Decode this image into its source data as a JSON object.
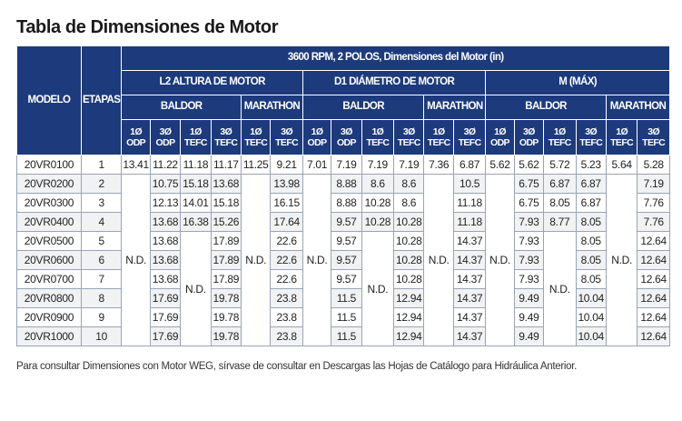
{
  "title": "Tabla de Dimensiones de Motor",
  "colors": {
    "header_bg": "#1d3a7c",
    "header_text": "#ffffff",
    "row_alt_bg": "#f1f2f4",
    "grid": "#9aa3b5"
  },
  "header": {
    "model": "MODELO",
    "stages": "ETAPAS",
    "top": "3600 RPM, 2 POLOS, Dimensiones del Motor (in)",
    "groups": [
      "L2 ALTURA DE MOTOR",
      "D1 DIÁMETRO DE MOTOR",
      "M (MÁX)"
    ],
    "brands": [
      "BALDOR",
      "MARATHON",
      "BALDOR",
      "MARATHON",
      "BALDOR",
      "MARATHON"
    ],
    "columns": [
      [
        "1Ø",
        "ODP"
      ],
      [
        "3Ø",
        "ODP"
      ],
      [
        "1Ø",
        "TEFC"
      ],
      [
        "3Ø",
        "TEFC"
      ],
      [
        "1Ø",
        "TEFC"
      ],
      [
        "3Ø",
        "TEFC"
      ],
      [
        "1Ø",
        "ODP"
      ],
      [
        "3Ø",
        "ODP"
      ],
      [
        "1Ø",
        "TEFC"
      ],
      [
        "3Ø",
        "TEFC"
      ],
      [
        "1Ø",
        "TEFC"
      ],
      [
        "3Ø",
        "TEFC"
      ],
      [
        "1Ø",
        "ODP"
      ],
      [
        "3Ø",
        "ODP"
      ],
      [
        "1Ø",
        "TEFC"
      ],
      [
        "3Ø",
        "TEFC"
      ],
      [
        "1Ø",
        "TEFC"
      ],
      [
        "3Ø",
        "TEFC"
      ]
    ]
  },
  "rows": [
    {
      "model": "20VR0100",
      "stages": "1",
      "values": [
        "13.41",
        "11.22",
        "11.18",
        "11.17",
        "11.25",
        "9.21",
        "7.01",
        "7.19",
        "7.19",
        "7.19",
        "7.36",
        "6.87",
        "5.62",
        "5.62",
        "5.72",
        "5.23",
        "5.64",
        "5.28"
      ]
    },
    {
      "model": "20VR0200",
      "stages": "2",
      "values": [
        "",
        "10.75",
        "15.18",
        "13.68",
        "",
        "13.98",
        "",
        "8.88",
        "8.6",
        "8.6",
        "",
        "10.5",
        "",
        "6.75",
        "6.87",
        "6.87",
        "",
        "7.19"
      ]
    },
    {
      "model": "20VR0300",
      "stages": "3",
      "values": [
        "",
        "12.13",
        "14.01",
        "15.18",
        "",
        "16.15",
        "",
        "8.88",
        "10.28",
        "8.6",
        "",
        "11.18",
        "",
        "6.75",
        "8.05",
        "6.87",
        "",
        "7.76"
      ]
    },
    {
      "model": "20VR0400",
      "stages": "4",
      "values": [
        "",
        "13.68",
        "16.38",
        "15.26",
        "",
        "17.64",
        "",
        "9.57",
        "10.28",
        "10.28",
        "",
        "11.18",
        "",
        "7.93",
        "8.77",
        "8.05",
        "",
        "7.76"
      ]
    },
    {
      "model": "20VR0500",
      "stages": "5",
      "values": [
        "",
        "13.68",
        "",
        "17.89",
        "",
        "22.6",
        "",
        "9.57",
        "",
        "10.28",
        "",
        "14.37",
        "",
        "7.93",
        "",
        "8.05",
        "",
        "12.64"
      ]
    },
    {
      "model": "20VR0600",
      "stages": "6",
      "values": [
        "",
        "13.68",
        "",
        "17.89",
        "",
        "22.6",
        "",
        "9.57",
        "",
        "10.28",
        "",
        "14.37",
        "",
        "7.93",
        "",
        "8.05",
        "",
        "12.64"
      ]
    },
    {
      "model": "20VR0700",
      "stages": "7",
      "values": [
        "",
        "13.68",
        "",
        "17.89",
        "",
        "22.6",
        "",
        "9.57",
        "",
        "10.28",
        "",
        "14.37",
        "",
        "7.93",
        "",
        "8.05",
        "",
        "12.64"
      ]
    },
    {
      "model": "20VR0800",
      "stages": "8",
      "values": [
        "",
        "17.69",
        "",
        "19.78",
        "",
        "23.8",
        "",
        "11.5",
        "",
        "12.94",
        "",
        "14.37",
        "",
        "9.49",
        "",
        "10.04",
        "",
        "12.64"
      ]
    },
    {
      "model": "20VR0900",
      "stages": "9",
      "values": [
        "",
        "17.69",
        "",
        "19.78",
        "",
        "23.8",
        "",
        "11.5",
        "",
        "12.94",
        "",
        "14.37",
        "",
        "9.49",
        "",
        "10.04",
        "",
        "12.64"
      ]
    },
    {
      "model": "20VR1000",
      "stages": "10",
      "values": [
        "",
        "17.69",
        "",
        "19.78",
        "",
        "23.8",
        "",
        "11.5",
        "",
        "12.94",
        "",
        "14.37",
        "",
        "9.49",
        "",
        "10.04",
        "",
        "12.64"
      ]
    }
  ],
  "nd_label": "N.D.",
  "footnote": "Para consultar Dimensiones con Motor WEG, sírvase de consultar en Descargas las Hojas de Catálogo para Hidráulica Anterior."
}
